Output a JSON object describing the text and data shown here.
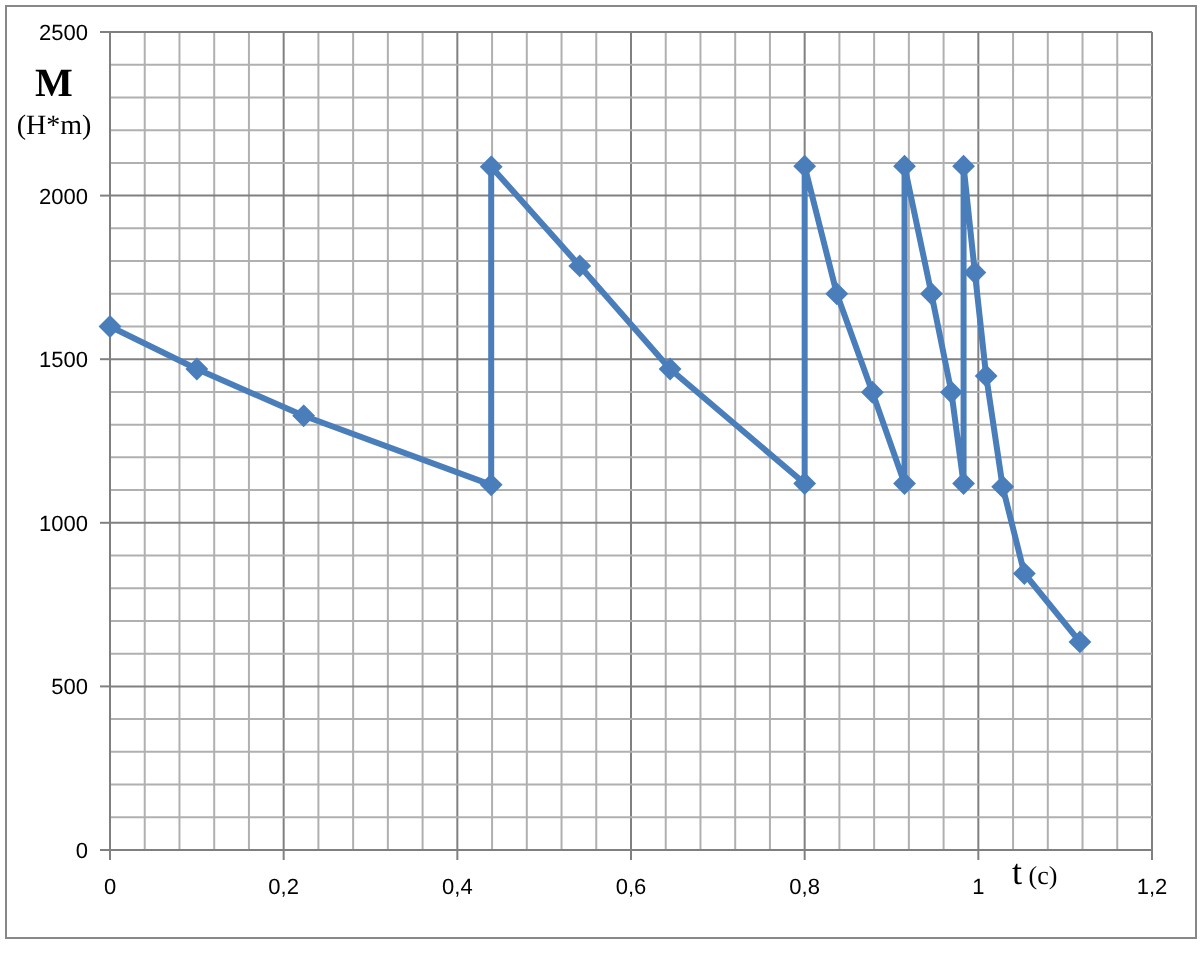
{
  "chart_data": {
    "type": "line",
    "xlabel": "t (c)",
    "ylabel": "M\n(H*m)",
    "x": [
      0,
      0.1,
      0.223,
      0.439,
      0.439,
      0.541,
      0.645,
      0.8,
      0.8,
      0.837,
      0.878,
      0.915,
      0.915,
      0.946,
      0.969,
      0.983,
      0.983,
      0.996,
      1.009,
      1.028,
      1.053,
      1.117
    ],
    "series": [
      {
        "color": "#4a7ebb",
        "values": [
          1600,
          1470,
          1327,
          1116,
          2088,
          1785,
          1470,
          1120,
          2090,
          1700,
          1399,
          1120,
          2090,
          1700,
          1399,
          1120,
          2090,
          1765,
          1449,
          1110,
          845,
          636
        ]
      }
    ],
    "xlim": [
      0,
      1.2
    ],
    "xticks": [
      0,
      {
        "value": 0.2,
        "label": "0,2"
      },
      {
        "value": 0.4,
        "label": "0,4"
      },
      {
        "value": 0.6,
        "label": "0,6"
      },
      {
        "value": 0.8,
        "label": "0,8"
      },
      1,
      {
        "value": 1.2,
        "label": "1,2"
      }
    ],
    "ylim": [
      0,
      2500
    ],
    "yticks": [
      0,
      500,
      1000,
      1500,
      2000,
      2500
    ],
    "grid": true,
    "marker": "diamond",
    "line_style": "solid"
  }
}
